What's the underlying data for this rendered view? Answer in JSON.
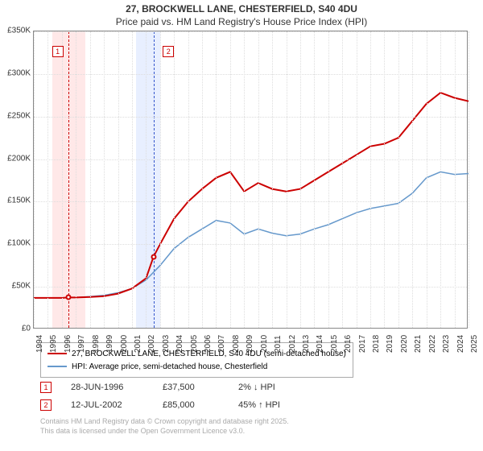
{
  "title": {
    "line1": "27, BROCKWELL LANE, CHESTERFIELD, S40 4DU",
    "line2": "Price paid vs. HM Land Registry's House Price Index (HPI)"
  },
  "chart": {
    "type": "line",
    "background_color": "#ffffff",
    "grid_color": "#dddddd",
    "border_color": "#888888",
    "ylim": [
      0,
      350000
    ],
    "ytick_step": 50000,
    "yticks": [
      "£0",
      "£50K",
      "£100K",
      "£150K",
      "£200K",
      "£250K",
      "£300K",
      "£350K"
    ],
    "xlim": [
      1994,
      2025
    ],
    "xticks": [
      "1994",
      "1995",
      "1996",
      "1997",
      "1998",
      "1999",
      "2000",
      "2001",
      "2002",
      "2003",
      "2004",
      "2005",
      "2006",
      "2007",
      "2008",
      "2009",
      "2010",
      "2011",
      "2012",
      "2013",
      "2014",
      "2015",
      "2016",
      "2017",
      "2018",
      "2019",
      "2020",
      "2021",
      "2022",
      "2023",
      "2024",
      "2025"
    ],
    "band1": {
      "x_start": 1995.3,
      "x_end": 1997.7,
      "fill": "#ffe8e8",
      "dash_x": 1996.48,
      "dash_color": "#cc0000"
    },
    "band2": {
      "x_start": 2001.3,
      "x_end": 2003.0,
      "fill": "#e8efff",
      "dash_x": 2002.53,
      "dash_color": "#3355cc"
    },
    "series_price": {
      "color": "#cc0000",
      "width": 2,
      "data": [
        [
          1994,
          37000
        ],
        [
          1995,
          37000
        ],
        [
          1996,
          37000
        ],
        [
          1996.48,
          37500
        ],
        [
          1997,
          37500
        ],
        [
          1998,
          38000
        ],
        [
          1999,
          39000
        ],
        [
          2000,
          42000
        ],
        [
          2001,
          48000
        ],
        [
          2002,
          60000
        ],
        [
          2002.53,
          85000
        ],
        [
          2003,
          100000
        ],
        [
          2004,
          130000
        ],
        [
          2005,
          150000
        ],
        [
          2006,
          165000
        ],
        [
          2007,
          178000
        ],
        [
          2008,
          185000
        ],
        [
          2009,
          162000
        ],
        [
          2010,
          172000
        ],
        [
          2011,
          165000
        ],
        [
          2012,
          162000
        ],
        [
          2013,
          165000
        ],
        [
          2014,
          175000
        ],
        [
          2015,
          185000
        ],
        [
          2016,
          195000
        ],
        [
          2017,
          205000
        ],
        [
          2018,
          215000
        ],
        [
          2019,
          218000
        ],
        [
          2020,
          225000
        ],
        [
          2021,
          245000
        ],
        [
          2022,
          265000
        ],
        [
          2023,
          278000
        ],
        [
          2024,
          272000
        ],
        [
          2025,
          268000
        ]
      ]
    },
    "series_hpi": {
      "color": "#6699cc",
      "width": 1.5,
      "data": [
        [
          1994,
          37000
        ],
        [
          1995,
          37000
        ],
        [
          1996,
          37000
        ],
        [
          1997,
          37500
        ],
        [
          1998,
          38500
        ],
        [
          1999,
          40000
        ],
        [
          2000,
          43000
        ],
        [
          2001,
          48000
        ],
        [
          2002,
          58000
        ],
        [
          2003,
          75000
        ],
        [
          2004,
          95000
        ],
        [
          2005,
          108000
        ],
        [
          2006,
          118000
        ],
        [
          2007,
          128000
        ],
        [
          2008,
          125000
        ],
        [
          2009,
          112000
        ],
        [
          2010,
          118000
        ],
        [
          2011,
          113000
        ],
        [
          2012,
          110000
        ],
        [
          2013,
          112000
        ],
        [
          2014,
          118000
        ],
        [
          2015,
          123000
        ],
        [
          2016,
          130000
        ],
        [
          2017,
          137000
        ],
        [
          2018,
          142000
        ],
        [
          2019,
          145000
        ],
        [
          2020,
          148000
        ],
        [
          2021,
          160000
        ],
        [
          2022,
          178000
        ],
        [
          2023,
          185000
        ],
        [
          2024,
          182000
        ],
        [
          2025,
          183000
        ]
      ]
    },
    "markers": [
      {
        "n": "1",
        "x": 1996.48,
        "y": 37500,
        "color": "#cc0000",
        "box_x": 1995.3
      },
      {
        "n": "2",
        "x": 2002.53,
        "y": 85000,
        "color": "#cc0000",
        "box_x": 2003.2
      }
    ]
  },
  "legend": {
    "items": [
      {
        "color": "#cc0000",
        "width": 2,
        "label": "27, BROCKWELL LANE, CHESTERFIELD, S40 4DU (semi-detached house)"
      },
      {
        "color": "#6699cc",
        "width": 1.5,
        "label": "HPI: Average price, semi-detached house, Chesterfield"
      }
    ]
  },
  "sales": [
    {
      "n": "1",
      "color": "#cc0000",
      "date": "28-JUN-1996",
      "price": "£37,500",
      "delta": "2% ↓ HPI"
    },
    {
      "n": "2",
      "color": "#cc0000",
      "date": "12-JUL-2002",
      "price": "£85,000",
      "delta": "45% ↑ HPI"
    }
  ],
  "footer": {
    "line1": "Contains HM Land Registry data © Crown copyright and database right 2025.",
    "line2": "This data is licensed under the Open Government Licence v3.0."
  }
}
